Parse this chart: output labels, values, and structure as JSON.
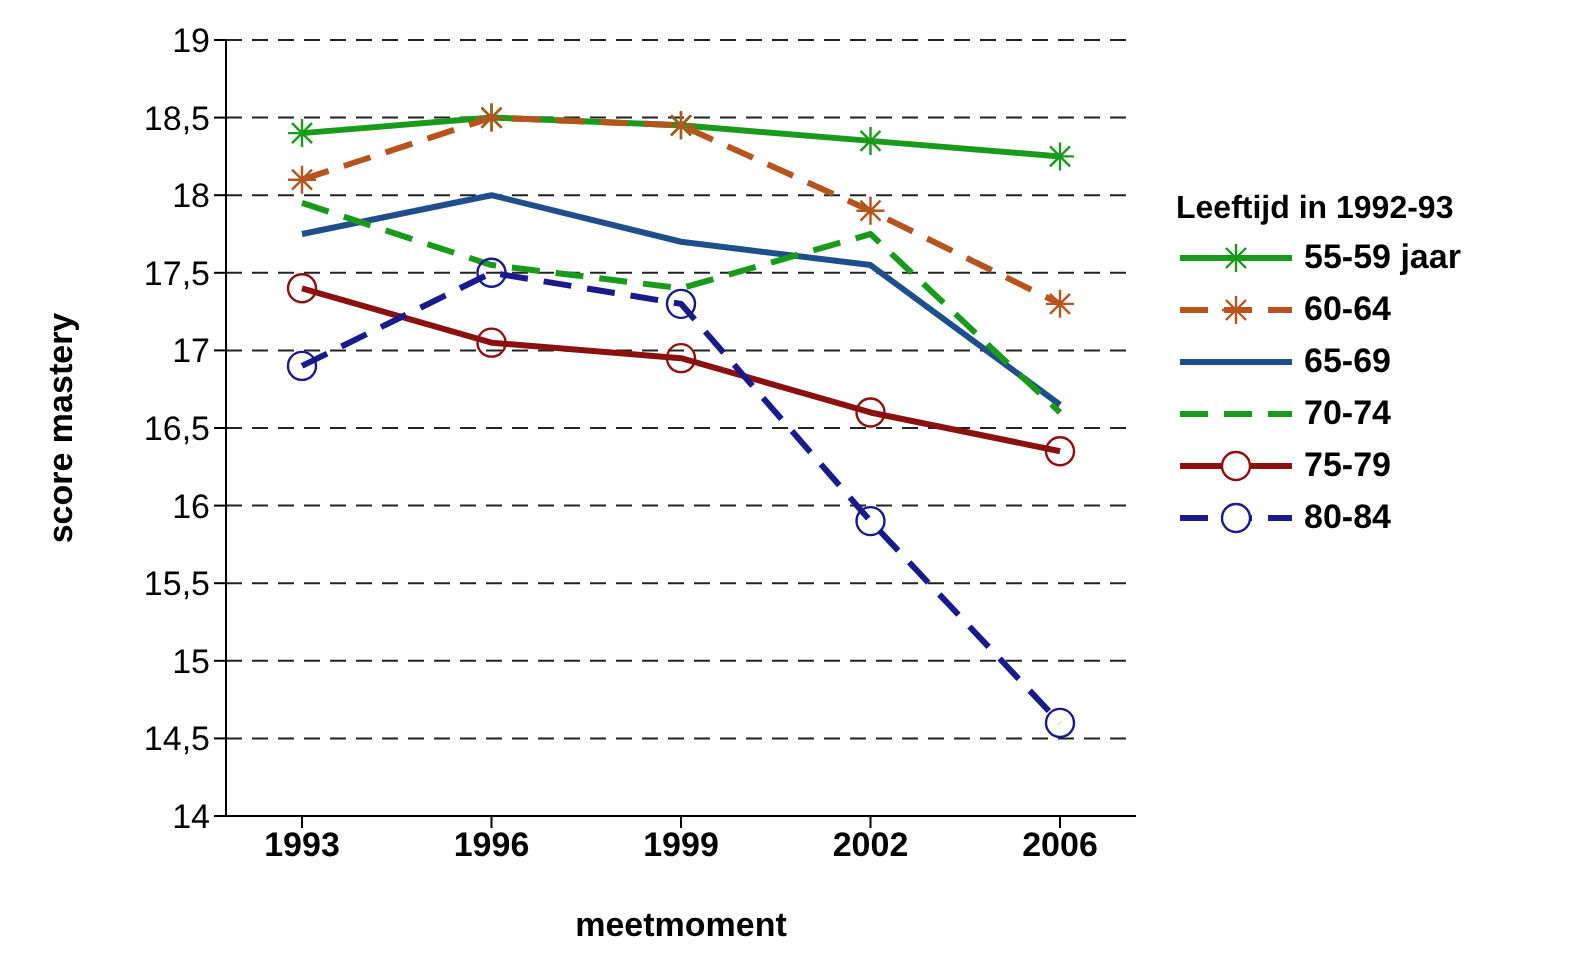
{
  "chart_data": {
    "type": "line",
    "xlabel": "meetmoment",
    "ylabel": "score mastery",
    "legend_title": "Leeftijd in 1992-93",
    "categories": [
      "1993",
      "1996",
      "1999",
      "2002",
      "2006"
    ],
    "ylim": [
      14,
      19
    ],
    "yticks": [
      14,
      {
        "value": 14.5,
        "label": "14,5"
      },
      15,
      {
        "value": 15.5,
        "label": "15,5"
      },
      16,
      {
        "value": 16.5,
        "label": "16,5"
      },
      17,
      {
        "value": 17.5,
        "label": "17,5"
      },
      18,
      {
        "value": 18.5,
        "label": "18,5"
      },
      19
    ],
    "grid": "y",
    "legend": "right",
    "series": [
      {
        "name": "55-59 jaar",
        "color": "#1a9a1a",
        "marker": "cross",
        "line_style": "solid",
        "values": [
          18.4,
          18.5,
          18.45,
          18.35,
          18.25
        ]
      },
      {
        "name": "60-64",
        "color": "#b5541c",
        "marker": "cross",
        "line_style": "dashed",
        "values": [
          18.1,
          18.5,
          18.45,
          17.9,
          17.3
        ]
      },
      {
        "name": "65-69",
        "color": "#1f4f8a",
        "marker": "none",
        "line_style": "solid",
        "values": [
          17.75,
          18.0,
          17.7,
          17.55,
          16.65
        ]
      },
      {
        "name": "70-74",
        "color": "#1a9a1a",
        "marker": "none",
        "line_style": "dashed",
        "values": [
          17.95,
          17.55,
          17.4,
          17.75,
          16.6
        ]
      },
      {
        "name": "75-79",
        "color": "#8b1010",
        "marker": "circle",
        "line_style": "solid",
        "values": [
          17.4,
          17.05,
          16.95,
          16.6,
          16.35
        ]
      },
      {
        "name": "80-84",
        "color": "#1a1a8a",
        "marker": "circle",
        "line_style": "dashed",
        "values": [
          16.9,
          17.5,
          17.3,
          15.9,
          14.6
        ]
      }
    ]
  }
}
